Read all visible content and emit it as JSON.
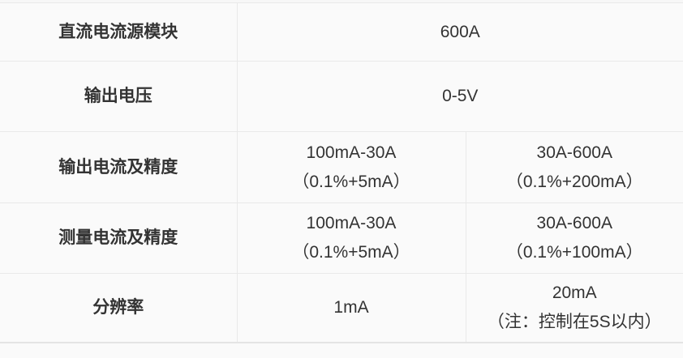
{
  "colors": {
    "cell_background": "#fafafa",
    "page_background": "#f7f7f7",
    "border": "#e9e9e9",
    "text": "#333333"
  },
  "spec_table": {
    "rows": [
      {
        "label": "直流电流源模块",
        "values": [
          [
            "600A"
          ]
        ]
      },
      {
        "label": "输出电压",
        "values": [
          [
            "0-5V"
          ]
        ]
      },
      {
        "label": "输出电流及精度",
        "values": [
          [
            "100mA-30A",
            "（0.1%+5mA）"
          ],
          [
            "30A-600A",
            "（0.1%+200mA）"
          ]
        ]
      },
      {
        "label": "测量电流及精度",
        "values": [
          [
            "100mA-30A",
            "（0.1%+5mA）"
          ],
          [
            "30A-600A",
            "（0.1%+100mA）"
          ]
        ]
      },
      {
        "label": "分辨率",
        "values": [
          [
            "1mA"
          ],
          [
            "20mA",
            "（注：控制在5S以内）"
          ]
        ]
      }
    ]
  }
}
